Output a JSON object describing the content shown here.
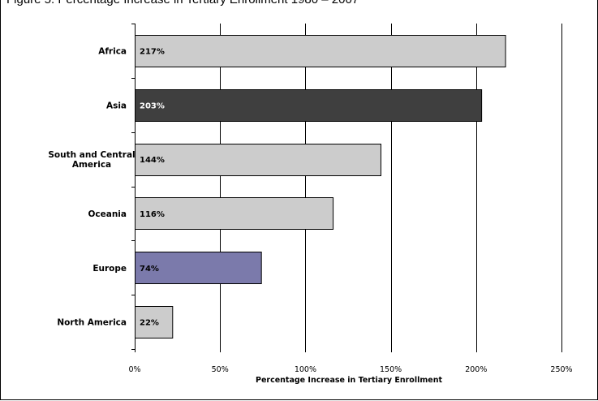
{
  "figure_title": "Figure 5. Percentage Increase in Tertiary Enrollment 1980 – 2007",
  "chart_data": {
    "type": "bar",
    "orientation": "horizontal",
    "categories": [
      "Africa",
      "Asia",
      "South and Central America",
      "Oceania",
      "Europe",
      "North America"
    ],
    "category_lines": [
      [
        "Africa"
      ],
      [
        "Asia"
      ],
      [
        "South and Central",
        "America"
      ],
      [
        "Oceania"
      ],
      [
        "Europe"
      ],
      [
        "North America"
      ]
    ],
    "values": [
      217,
      203,
      144,
      116,
      74,
      22
    ],
    "value_labels": [
      "217%",
      "203%",
      "144%",
      "116%",
      "74%",
      "22%"
    ],
    "bar_colors": [
      "#cccccc",
      "#3f3f3f",
      "#cccccc",
      "#cccccc",
      "#7b7aab",
      "#cccccc"
    ],
    "value_label_colors": [
      "#000000",
      "#ffffff",
      "#000000",
      "#000000",
      "#000000",
      "#000000"
    ],
    "xlim": [
      0,
      250
    ],
    "xticks": [
      0,
      50,
      100,
      150,
      200,
      250
    ],
    "xtick_labels": [
      "0%",
      "50%",
      "100%",
      "150%",
      "200%",
      "250%"
    ],
    "xlabel": "Percentage Increase in Tertiary Enrollment",
    "ylabel": "",
    "grid": true,
    "legend": "none"
  }
}
